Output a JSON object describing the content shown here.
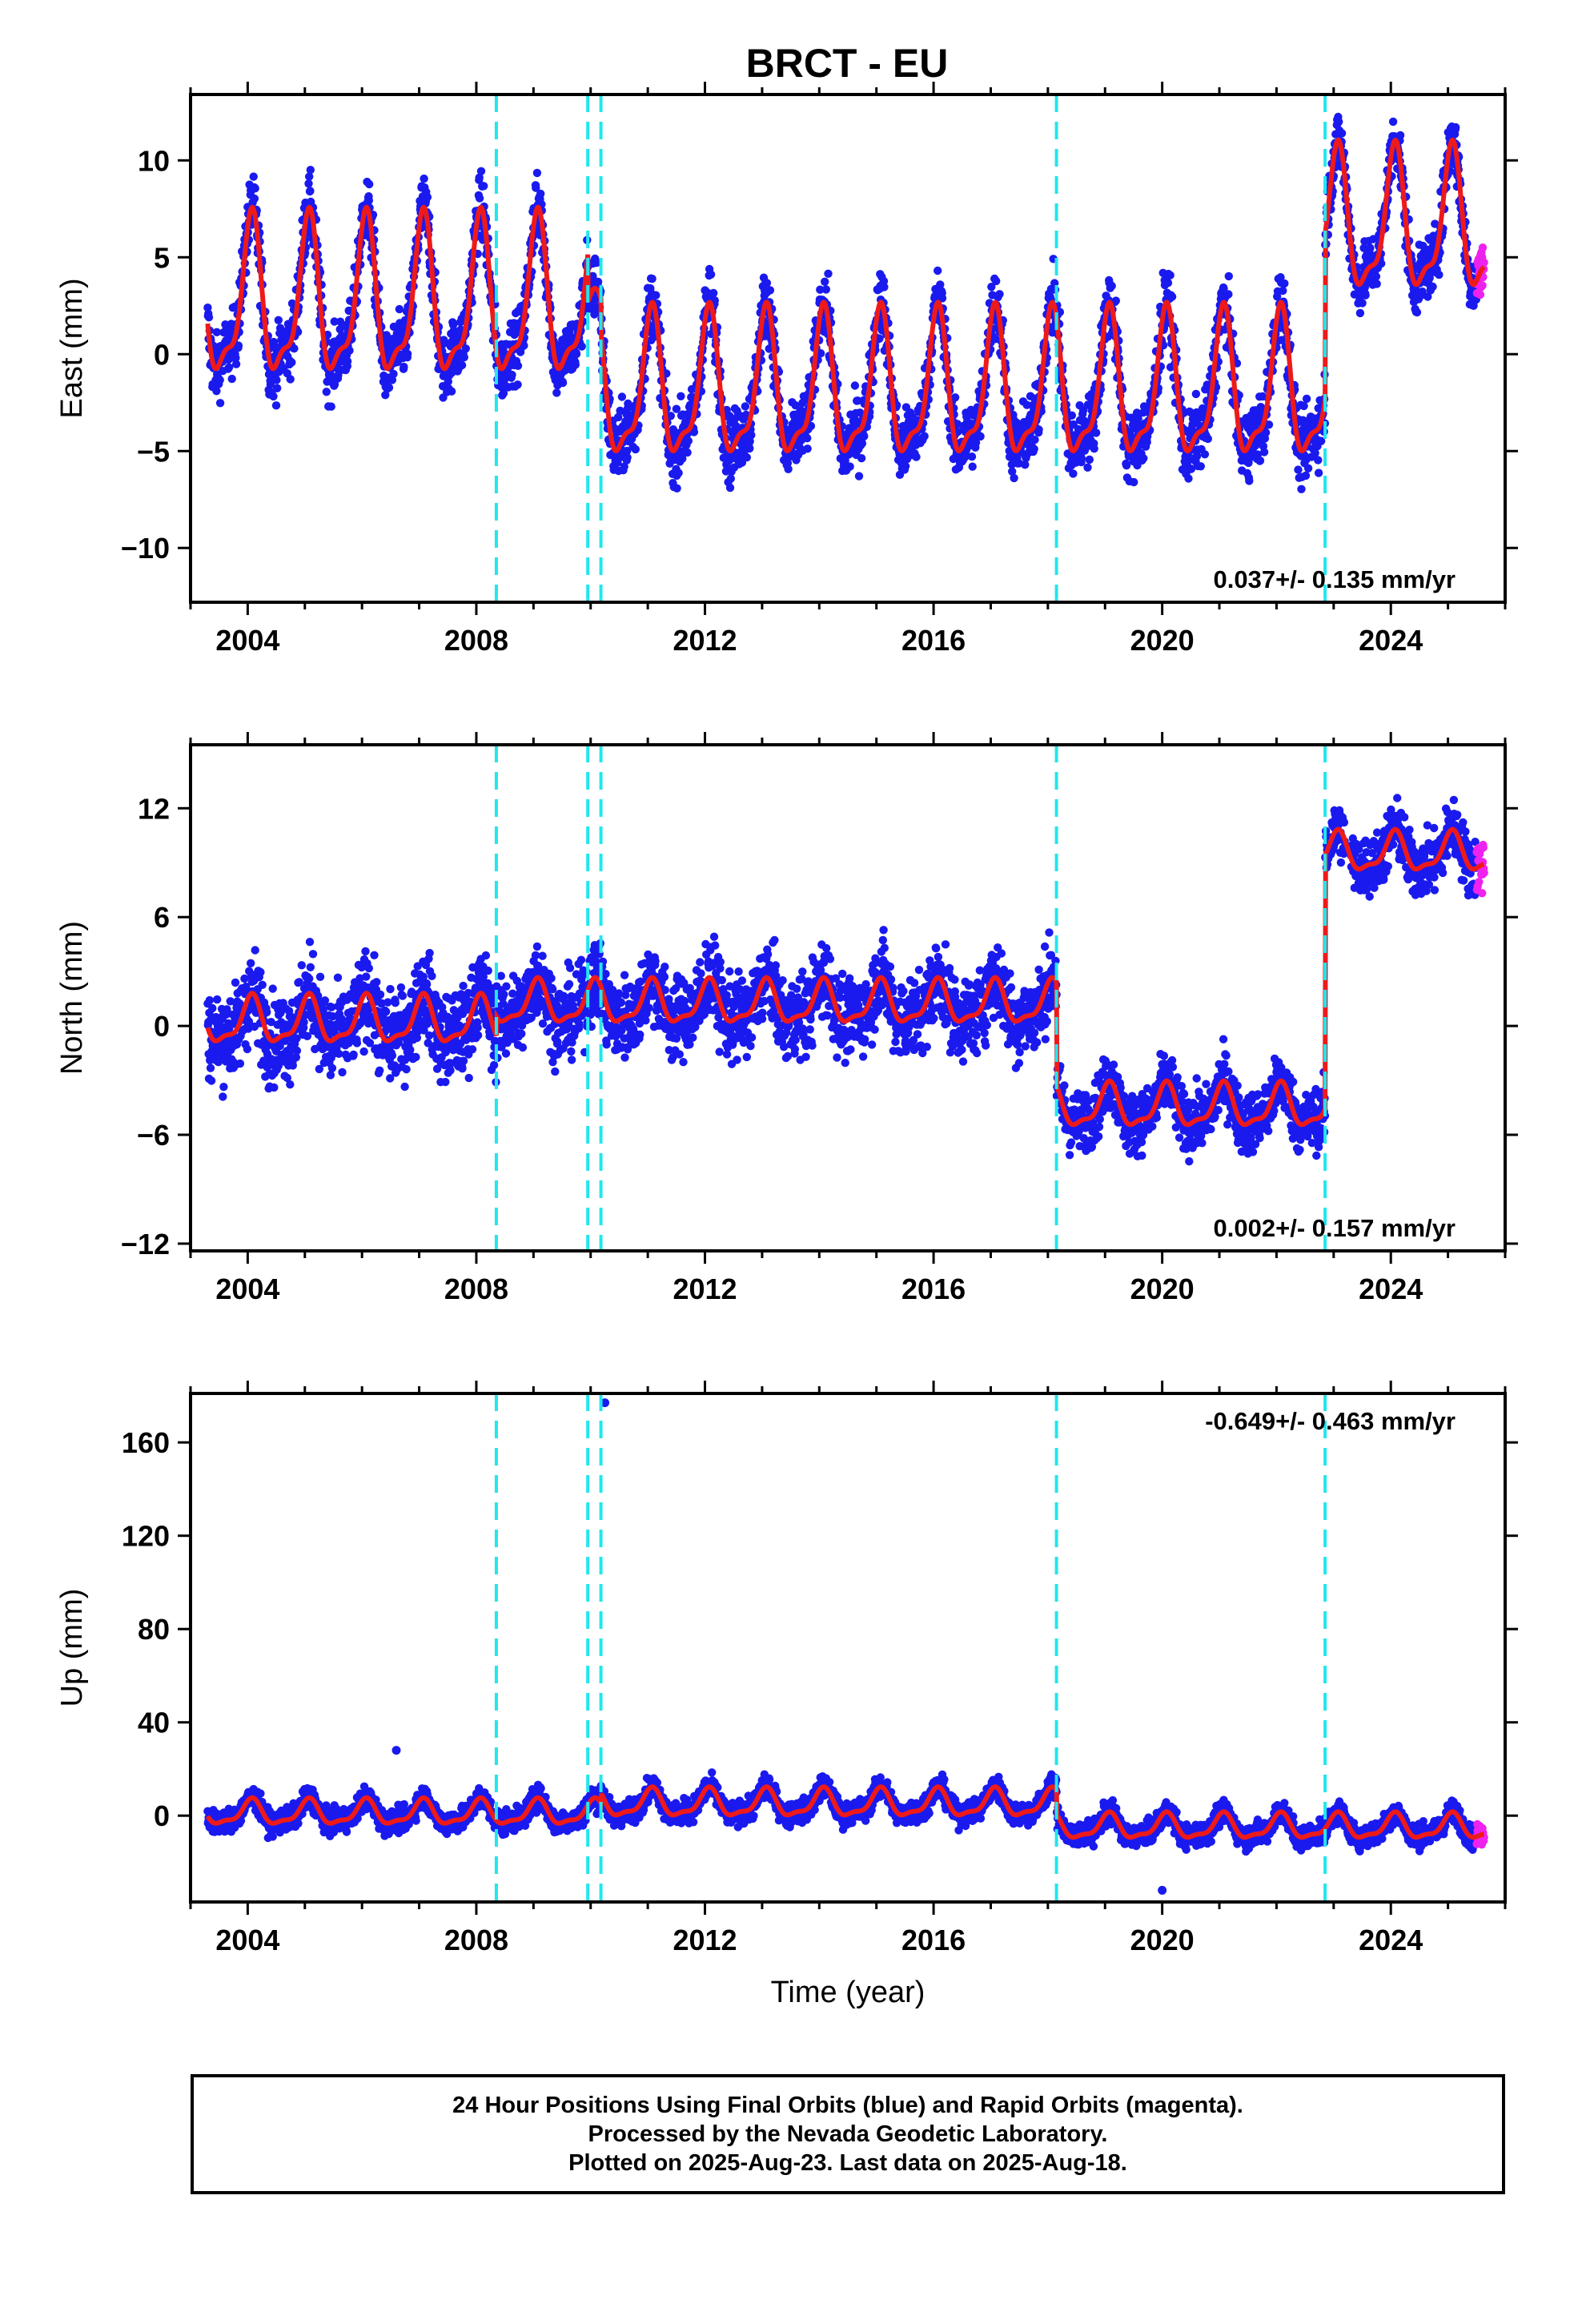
{
  "title": "BRCT - EU",
  "colors": {
    "final_orbits": "#1a1aee",
    "rapid_orbits": "#ee22ee",
    "model_fit": "#ee1a1a",
    "offset_lines": "#22e6ee",
    "frame": "#000000"
  },
  "chart_data": [
    {
      "type": "scatter",
      "component": "East",
      "ylabel": "East (mm)",
      "xlim": [
        2003.0,
        2026.0
      ],
      "ylim": [
        -12.8,
        13.4
      ],
      "yticks": [
        10,
        5,
        0,
        -5,
        -10
      ],
      "ytick_labels": [
        "10",
        "5",
        "0",
        "−5",
        "−10"
      ],
      "xticks": [
        2004,
        2008,
        2012,
        2016,
        2020,
        2024
      ],
      "xtick_labels": [
        "2004",
        "2008",
        "2012",
        "2016",
        "2020",
        "2024"
      ],
      "rate_label": "0.037+/- 0.135 mm/yr",
      "data_start": 2003.3,
      "final_end": 2025.5,
      "rapid_end": 2025.63,
      "offset_epochs": [
        2008.35,
        2009.95,
        2010.18,
        2018.15,
        2022.85
      ],
      "model_segments": [
        {
          "start": 2003.3,
          "end": 2009.95,
          "baseline": 2.5,
          "seasonal_amp": 3.8,
          "noise": 1.5
        },
        {
          "start": 2009.95,
          "end": 2010.18,
          "baseline": 1.8,
          "seasonal_amp": 1.2,
          "noise": 1.5
        },
        {
          "start": 2010.18,
          "end": 2022.85,
          "baseline": -2.0,
          "seasonal_amp": 3.5,
          "noise": 1.6
        },
        {
          "start": 2022.85,
          "end": 2025.63,
          "baseline": 6.5,
          "seasonal_amp": 3.4,
          "noise": 1.4
        }
      ]
    },
    {
      "type": "scatter",
      "component": "North",
      "ylabel": "North (mm)",
      "xlim": [
        2003.0,
        2026.0
      ],
      "ylim": [
        -12.4,
        15.5
      ],
      "yticks": [
        12,
        6,
        0,
        -6,
        -12
      ],
      "ytick_labels": [
        "12",
        "6",
        "0",
        "−6",
        "−12"
      ],
      "xticks": [
        2004,
        2008,
        2012,
        2016,
        2020,
        2024
      ],
      "xtick_labels": [
        "2004",
        "2008",
        "2012",
        "2016",
        "2020",
        "2024"
      ],
      "rate_label": "0.002+/- 0.157 mm/yr",
      "data_start": 2003.3,
      "final_end": 2025.5,
      "rapid_end": 2025.63,
      "offset_epochs": [
        2008.35,
        2009.95,
        2010.18,
        2018.15,
        2022.85
      ],
      "model_segments": [
        {
          "start": 2003.3,
          "end": 2008.35,
          "baseline": 0.2,
          "seasonal_amp": 1.2,
          "noise": 2.2
        },
        {
          "start": 2008.35,
          "end": 2018.15,
          "baseline": 1.2,
          "seasonal_amp": 1.1,
          "noise": 2.0
        },
        {
          "start": 2018.15,
          "end": 2022.85,
          "baseline": -4.5,
          "seasonal_amp": 1.1,
          "noise": 1.5
        },
        {
          "start": 2022.85,
          "end": 2025.63,
          "baseline": 9.5,
          "seasonal_amp": 1.0,
          "noise": 1.5
        }
      ]
    },
    {
      "type": "scatter",
      "component": "Up",
      "ylabel": "Up (mm)",
      "xlabel": "Time (year)",
      "xlim": [
        2003.0,
        2026.0
      ],
      "ylim": [
        -37,
        181
      ],
      "yticks": [
        160,
        120,
        80,
        40,
        0
      ],
      "ytick_labels": [
        "160",
        "120",
        "80",
        "40",
        "0"
      ],
      "xticks": [
        2004,
        2008,
        2012,
        2016,
        2020,
        2024
      ],
      "xtick_labels": [
        "2004",
        "2008",
        "2012",
        "2016",
        "2020",
        "2024"
      ],
      "rate_label": "-0.649+/- 0.463 mm/yr",
      "data_start": 2003.3,
      "final_end": 2025.5,
      "rapid_end": 2025.63,
      "offset_epochs": [
        2008.35,
        2009.95,
        2010.18,
        2018.15,
        2022.85
      ],
      "outliers": [
        {
          "x": 2010.25,
          "y": 177
        },
        {
          "x": 2006.6,
          "y": 28
        },
        {
          "x": 2020.0,
          "y": -32
        }
      ],
      "model_segments": [
        {
          "start": 2003.3,
          "end": 2010.18,
          "baseline": 1.0,
          "seasonal_amp": 5.0,
          "noise": 4.5
        },
        {
          "start": 2010.18,
          "end": 2018.15,
          "baseline": 5.0,
          "seasonal_amp": 5.5,
          "noise": 4.5
        },
        {
          "start": 2018.15,
          "end": 2025.63,
          "baseline": -5.0,
          "seasonal_amp": 5.0,
          "noise": 4.5
        }
      ]
    }
  ],
  "footer": {
    "line1": "24 Hour Positions Using Final Orbits (blue) and Rapid Orbits (magenta).",
    "line2": "Processed by the Nevada Geodetic Laboratory.",
    "line3": "Plotted on 2025-Aug-23. Last data on 2025-Aug-18."
  }
}
